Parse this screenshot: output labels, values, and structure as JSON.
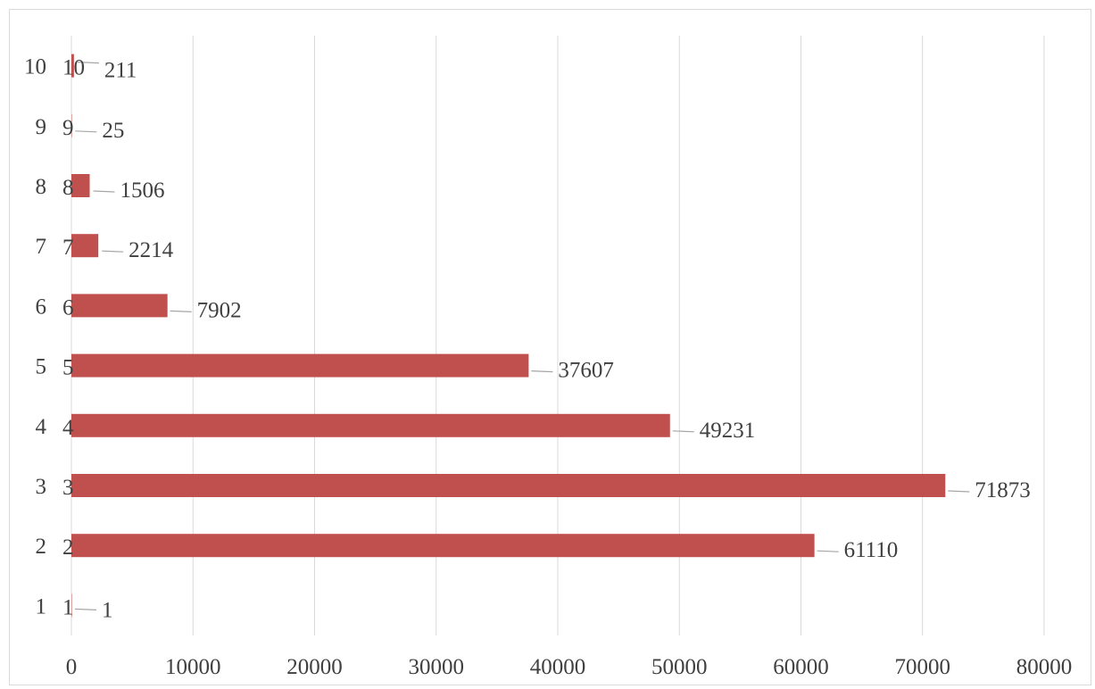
{
  "chart_data": {
    "type": "bar",
    "orientation": "horizontal",
    "categories": [
      "1",
      "2",
      "3",
      "4",
      "5",
      "6",
      "7",
      "8",
      "9",
      "10"
    ],
    "values": [
      1,
      61110,
      71873,
      49231,
      37607,
      7902,
      2214,
      1506,
      25,
      211
    ],
    "title": "",
    "xlabel": "",
    "ylabel": "",
    "xlim": [
      0,
      80000
    ],
    "xticks": [
      "0",
      "10000",
      "20000",
      "30000",
      "40000",
      "50000",
      "60000",
      "70000",
      "80000"
    ],
    "grid": true,
    "legend": "none",
    "bar_color": "#c0504d",
    "label_color": "#404040",
    "grid_color": "#d9d9d9"
  }
}
